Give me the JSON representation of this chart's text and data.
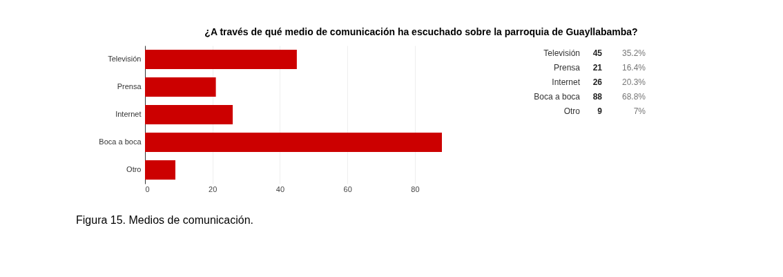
{
  "chart_data": {
    "type": "bar",
    "orientation": "horizontal",
    "title": "¿A través de qué medio de comunicación ha escuchado sobre la parroquia de Guayllabamba?",
    "categories": [
      "Televisión",
      "Prensa",
      "Internet",
      "Boca a boca",
      "Otro"
    ],
    "values": [
      45,
      21,
      26,
      88,
      9
    ],
    "color": "#cc0000",
    "xlim": [
      0,
      88
    ],
    "xticks": [
      0,
      20,
      40,
      60,
      80
    ],
    "grid": "x",
    "annotations": [
      "45",
      "35.2%",
      "21",
      "16.4%",
      "26",
      "20.3%",
      "88",
      "68.8%",
      "9",
      "7%",
      "Figura 15. Medios de comunicación."
    ]
  }
}
